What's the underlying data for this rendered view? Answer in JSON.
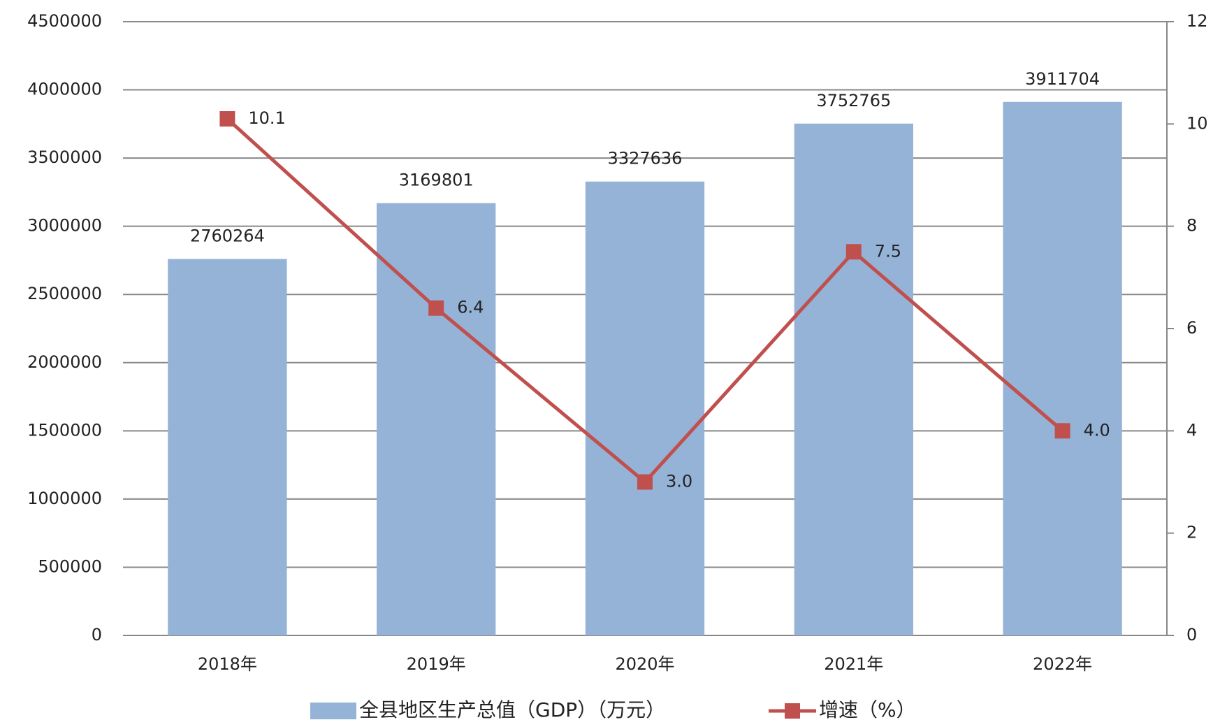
{
  "chart_data": {
    "type": "bar",
    "categories": [
      "2018年",
      "2019年",
      "2020年",
      "2021年",
      "2022年"
    ],
    "series": [
      {
        "name": "全县地区生产总值（GDP）（万元）",
        "color": "#95b3d7",
        "values": [
          2760264,
          3169801,
          3327636,
          3752765,
          3911704
        ]
      },
      {
        "name": "增速（%）",
        "color": "#c0504d",
        "type": "line",
        "axis": "y2",
        "values": [
          10.1,
          6.4,
          3.0,
          7.5,
          4.0
        ],
        "value_labels": [
          "10.1",
          "6.4",
          "3.0",
          "7.5",
          "4.0"
        ]
      }
    ],
    "ylim": [
      0,
      4500000
    ],
    "yticks": [
      0,
      500000,
      1000000,
      1500000,
      2000000,
      2500000,
      3000000,
      3500000,
      4000000,
      4500000
    ],
    "y2lim": [
      0,
      12
    ],
    "y2ticks": [
      0,
      2,
      4,
      6,
      8,
      10,
      12
    ],
    "grid": true
  }
}
